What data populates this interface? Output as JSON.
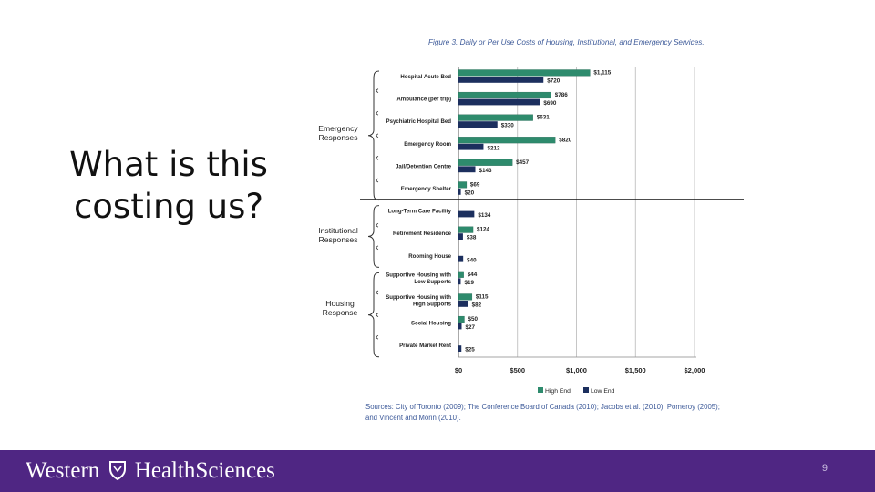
{
  "slide": {
    "title_line1": "What is this",
    "title_line2": "costing us?",
    "page_number": "9"
  },
  "footer": {
    "brand_part1": "Western",
    "brand_part2": "HealthSciences"
  },
  "colors": {
    "high": "#2e8b6d",
    "low": "#1c2f5e",
    "footer_bg": "#4f2683"
  },
  "chart_data": {
    "type": "bar",
    "orientation": "horizontal",
    "title": "Figure 3. Daily or Per Use Costs of Housing, Institutional, and Emergency Services.",
    "categories": [
      "Hospital Acute Bed",
      "Ambulance (per trip)",
      "Psychiatric Hospital Bed",
      "Emergency Room",
      "Jail/Detention Centre",
      "Emergency Shelter",
      "Long-Term Care Facility",
      "Retirement Residence",
      "Rooming House",
      "Supportive Housing with Low Supports",
      "Supportive Housing with High Supports",
      "Social Housing",
      "Private Market Rent"
    ],
    "series": [
      {
        "name": "High End",
        "values": [
          1115,
          786,
          631,
          820,
          457,
          69,
          null,
          124,
          null,
          44,
          115,
          50,
          null
        ]
      },
      {
        "name": "Low End",
        "values": [
          720,
          690,
          330,
          212,
          143,
          20,
          134,
          38,
          40,
          19,
          82,
          27,
          25
        ]
      }
    ],
    "value_labels": {
      "high": [
        "$1,115",
        "$786",
        "$631",
        "$820",
        "$457",
        "$69",
        "",
        "$124",
        "",
        "$44",
        "$115",
        "$50",
        ""
      ],
      "low": [
        "$720",
        "$690",
        "$330",
        "$212",
        "$143",
        "$20",
        "$134",
        "$38",
        "$40",
        "$19",
        "$82",
        "$27",
        "$25"
      ]
    },
    "groups": [
      {
        "label": "Emergency Responses",
        "start": 0,
        "end": 5
      },
      {
        "label": "Institutional Responses",
        "start": 6,
        "end": 8
      },
      {
        "label": "Housing Response",
        "start": 9,
        "end": 12
      }
    ],
    "xlim": [
      0,
      2000
    ],
    "xticks": [
      0,
      500,
      1000,
      1500,
      2000
    ],
    "xtick_labels": [
      "$0",
      "$500",
      "$1,000",
      "$1,500",
      "$2,000"
    ],
    "grid": true,
    "legend": [
      "High End",
      "Low End"
    ],
    "legend_position": "bottom",
    "source": "Sources: City of Toronto (2009); The Conference Board of Canada (2010); Jacobs et al. (2010); Pomeroy (2005); and Vincent and Morin (2010)."
  }
}
